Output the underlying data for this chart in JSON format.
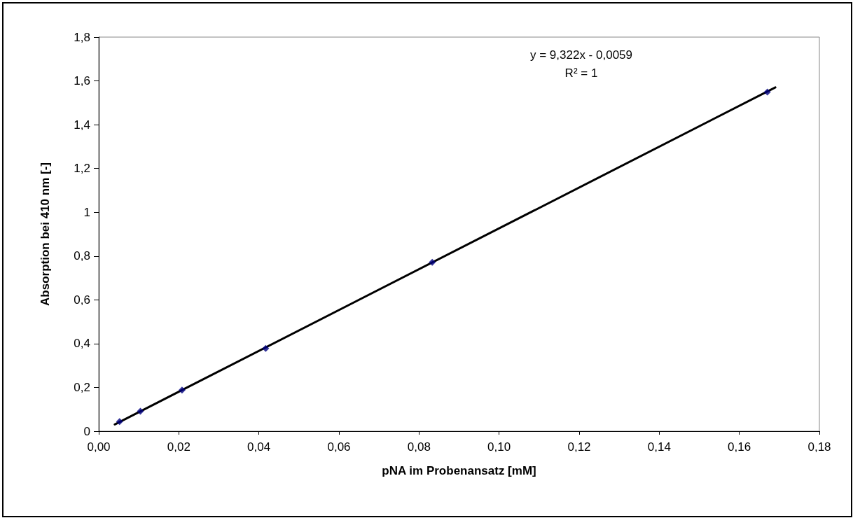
{
  "chart_data": {
    "type": "scatter",
    "xlabel": "pNA im Probenansatz [mM]",
    "ylabel": "Absorption bei 410 nm [-]",
    "annotations": [
      "y = 9,322x - 0,0059",
      "R² = 1"
    ],
    "series": [
      {
        "color": "#000080",
        "marker": "diamond",
        "x": [
          0.0052,
          0.0104,
          0.0208,
          0.0417,
          0.0833,
          0.167
        ],
        "values": [
          0.044,
          0.091,
          0.188,
          0.378,
          0.771,
          1.549
        ]
      },
      {
        "type": "line",
        "color": "#000000",
        "marker": "none",
        "x": [
          0.004,
          0.169
        ],
        "values": [
          0.031,
          1.57
        ]
      }
    ],
    "xlim": [
      0,
      0.18
    ],
    "xticks": [
      {
        "value": 0,
        "label": "0,00"
      },
      {
        "value": 0.02,
        "label": "0,02"
      },
      {
        "value": 0.04,
        "label": "0,04"
      },
      {
        "value": 0.06,
        "label": "0,06"
      },
      {
        "value": 0.08,
        "label": "0,08"
      },
      {
        "value": 0.1,
        "label": "0,10"
      },
      {
        "value": 0.12,
        "label": "0,12"
      },
      {
        "value": 0.14,
        "label": "0,14"
      },
      {
        "value": 0.16,
        "label": "0,16"
      },
      {
        "value": 0.18,
        "label": "0,18"
      }
    ],
    "ylim": [
      0,
      1.8
    ],
    "yticks": [
      0,
      {
        "value": 0.2,
        "label": "0,2"
      },
      {
        "value": 0.4,
        "label": "0,4"
      },
      {
        "value": 0.6,
        "label": "0,6"
      },
      {
        "value": 0.8,
        "label": "0,8"
      },
      1,
      {
        "value": 1.2,
        "label": "1,2"
      },
      {
        "value": 1.4,
        "label": "1,4"
      },
      {
        "value": 1.6,
        "label": "1,6"
      },
      {
        "value": 1.8,
        "label": "1,8"
      }
    ],
    "grid": false
  }
}
